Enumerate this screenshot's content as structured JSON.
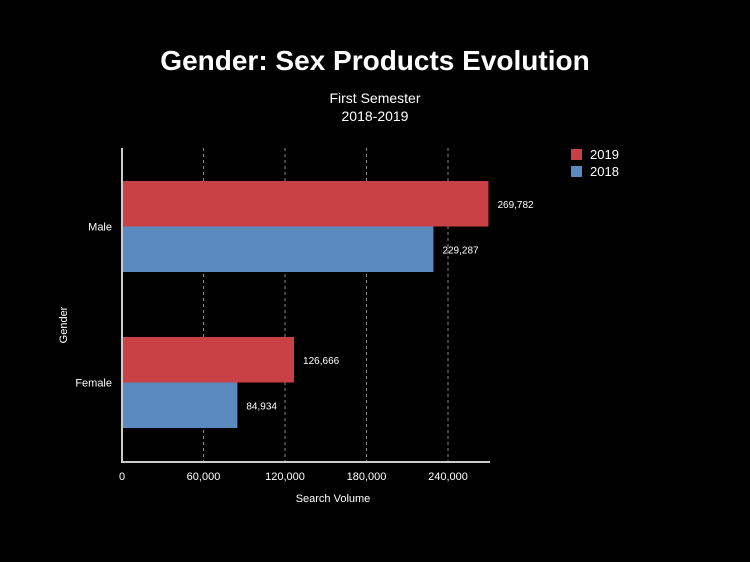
{
  "chart_data": {
    "type": "bar",
    "orientation": "horizontal",
    "title": "Gender: Sex Products Evolution",
    "subtitle": [
      "First Semester",
      "2018-2019"
    ],
    "xlabel": "Search Volume",
    "ylabel": "Gender",
    "categories": [
      "Male",
      "Female"
    ],
    "series": [
      {
        "name": "2019",
        "color": "#c94145",
        "values": [
          269782,
          126666
        ],
        "labels": [
          "269,782",
          "126,666"
        ]
      },
      {
        "name": "2018",
        "color": "#5b8bbe",
        "values": [
          229287,
          84934
        ],
        "labels": [
          "229,287",
          "84,934"
        ]
      }
    ],
    "xlim": [
      0,
      270000
    ],
    "xticks": [
      0,
      60000,
      120000,
      180000,
      240000
    ],
    "xtick_labels": [
      "0",
      "60,000",
      "120,000",
      "180,000",
      "240,000"
    ],
    "grid": "vertical dashed",
    "legend": "top-right",
    "background": "#000000"
  }
}
